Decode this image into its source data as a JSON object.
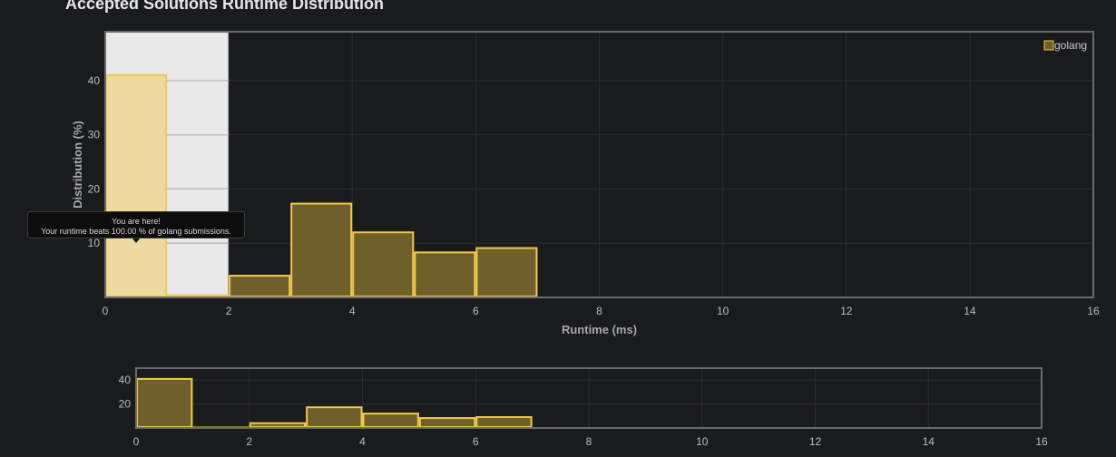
{
  "page": {
    "title": "Accepted Solutions Runtime Distribution"
  },
  "tooltip": {
    "title": "You are here!",
    "body": "Your runtime beats 100.00 % of golang submissions."
  },
  "colors": {
    "background": "#1a1b1d",
    "bar_fill": "#6e5f2b",
    "bar_stroke": "#f2c94c",
    "highlight_fill": "#eed9a1",
    "highlight_band": "#e9e9e9",
    "grid": "#2c2c2e",
    "frame": "#6a6a6a"
  },
  "chart_data": [
    {
      "type": "bar",
      "name": "main",
      "xlabel": "Runtime (ms)",
      "ylabel": "Distribution (%)",
      "xlim": [
        0,
        16
      ],
      "ylim": [
        0,
        49
      ],
      "x_ticks": [
        "0",
        "2",
        "4",
        "6",
        "8",
        "10",
        "12",
        "14",
        "16"
      ],
      "y_ticks": [
        "10",
        "20",
        "30",
        "40"
      ],
      "legend": {
        "entries": [
          "golang"
        ],
        "position": "top-right"
      },
      "highlight_range": [
        0,
        2
      ],
      "highlight_bin": 0,
      "grid": true,
      "series": [
        {
          "name": "golang",
          "bins": [
            {
              "x0": 0,
              "x1": 1,
              "value": 41.0
            },
            {
              "x0": 1,
              "x1": 2,
              "value": 0.4
            },
            {
              "x0": 2,
              "x1": 3,
              "value": 4.0
            },
            {
              "x0": 3,
              "x1": 4,
              "value": 17.3
            },
            {
              "x0": 4,
              "x1": 5,
              "value": 12.0
            },
            {
              "x0": 5,
              "x1": 6,
              "value": 8.3
            },
            {
              "x0": 6,
              "x1": 7,
              "value": 9.1
            }
          ]
        }
      ]
    },
    {
      "type": "bar",
      "name": "overview",
      "xlim": [
        0,
        16
      ],
      "ylim": [
        0,
        50
      ],
      "x_ticks": [
        "0",
        "2",
        "4",
        "6",
        "8",
        "10",
        "12",
        "14",
        "16"
      ],
      "y_ticks": [
        "20",
        "40"
      ],
      "grid": true,
      "series": [
        {
          "name": "golang",
          "bins": [
            {
              "x0": 0,
              "x1": 1,
              "value": 41.0
            },
            {
              "x0": 1,
              "x1": 2,
              "value": 0.4
            },
            {
              "x0": 2,
              "x1": 3,
              "value": 4.0
            },
            {
              "x0": 3,
              "x1": 4,
              "value": 17.3
            },
            {
              "x0": 4,
              "x1": 5,
              "value": 12.0
            },
            {
              "x0": 5,
              "x1": 6,
              "value": 8.3
            },
            {
              "x0": 6,
              "x1": 7,
              "value": 9.1
            }
          ]
        }
      ]
    }
  ]
}
